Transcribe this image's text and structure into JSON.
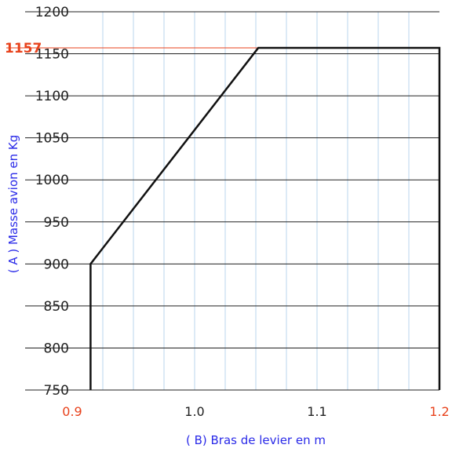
{
  "chart_data": {
    "type": "line",
    "title": "",
    "xlabel": "( B) Bras de levier en m",
    "ylabel": "( A ) Masse avion en Kg",
    "xlim": [
      0.9,
      1.2
    ],
    "ylim": [
      750,
      1200
    ],
    "x_tick_labels": [
      {
        "value": 0.9,
        "label": "0.9",
        "color": "#e8421c"
      },
      {
        "value": 1.0,
        "label": "1.0",
        "color": "#222222"
      },
      {
        "value": 1.1,
        "label": "1.1",
        "color": "#222222"
      },
      {
        "value": 1.2,
        "label": "1.2",
        "color": "#e8421c"
      }
    ],
    "x_grid": [
      0.925,
      0.95,
      0.975,
      1.0,
      1.025,
      1.05,
      1.075,
      1.1,
      1.125,
      1.15,
      1.175
    ],
    "y_ticks": [
      750,
      800,
      850,
      900,
      950,
      1000,
      1050,
      1100,
      1150,
      1200
    ],
    "series": [
      {
        "x": [
          0.915,
          0.915,
          1.052,
          1.2,
          1.2
        ],
        "y": [
          750,
          900,
          1157,
          1157,
          750
        ]
      }
    ],
    "annotations": [
      {
        "label": "1157",
        "y": 1157,
        "color": "#e8421c"
      }
    ],
    "grid": true,
    "colors": {
      "envelope": "#111111",
      "grid_vertical": "#b9d6ec",
      "grid_horizontal": "#222222",
      "reference_line": "#e8421c",
      "label_text": "#2a2ae8"
    }
  }
}
